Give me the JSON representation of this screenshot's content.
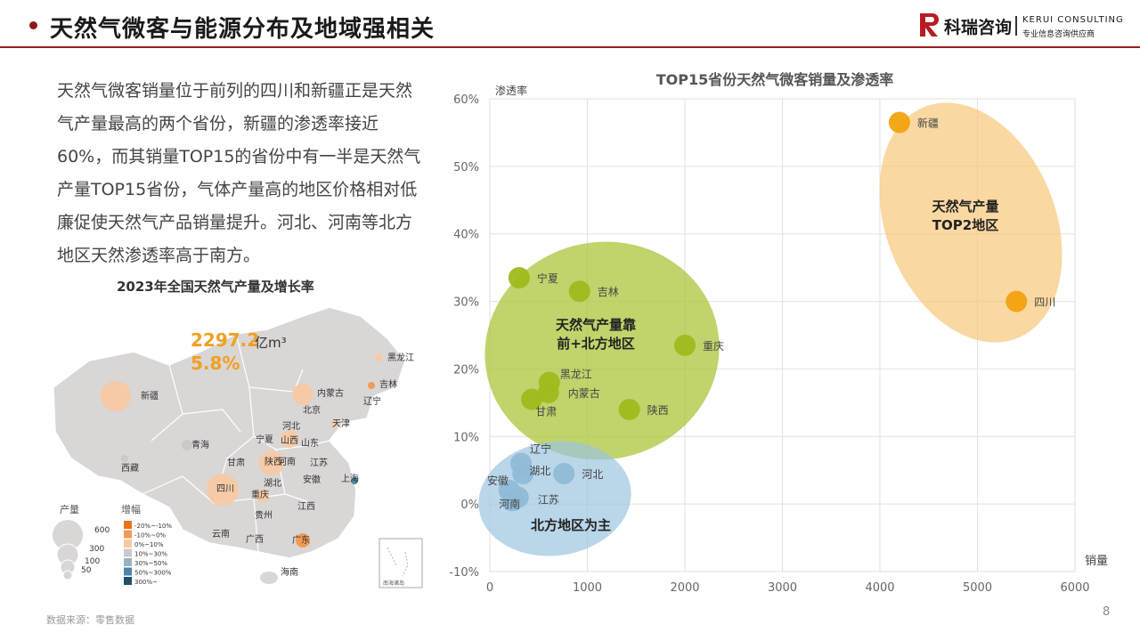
{
  "header": {
    "title": "天然气微客与能源分布及地域强相关",
    "logo_cn": "科瑞咨询",
    "logo_en": "KERUI CONSULTING",
    "logo_tag": "专业信息咨询供应商"
  },
  "paragraph": "天然气微客销量位于前列的四川和新疆正是天然气产量最高的两个省份，新疆的渗透率接近60%，而其销量TOP15的省份中有一半是天然气产量TOP15省份，气体产量高的地区价格相对低廉促使天然气产品销量提升。河北、河南等北方地区天然渗透率高于南方。",
  "map": {
    "title": "2023年全国天然气产量及增长率",
    "total_value": "2297.2",
    "total_unit": "亿m³",
    "growth": "5.8%",
    "provinces": [
      {
        "name": "黑龙江"
      },
      {
        "name": "吉林"
      },
      {
        "name": "内蒙古"
      },
      {
        "name": "辽宁"
      },
      {
        "name": "新疆"
      },
      {
        "name": "北京"
      },
      {
        "name": "天津"
      },
      {
        "name": "河北"
      },
      {
        "name": "青海"
      },
      {
        "name": "宁夏"
      },
      {
        "name": "山西"
      },
      {
        "name": "山东"
      },
      {
        "name": "甘肃"
      },
      {
        "name": "陕西"
      },
      {
        "name": "河南"
      },
      {
        "name": "江苏"
      },
      {
        "name": "西藏"
      },
      {
        "name": "湖北"
      },
      {
        "name": "安徽"
      },
      {
        "name": "上海"
      },
      {
        "name": "四川"
      },
      {
        "name": "重庆"
      },
      {
        "name": "贵州"
      },
      {
        "name": "江西"
      },
      {
        "name": "云南"
      },
      {
        "name": "广西"
      },
      {
        "name": "广东"
      },
      {
        "name": "海南"
      }
    ],
    "legend_size_title": "产量",
    "legend_sizes": [
      "600",
      "300",
      "100",
      "50"
    ],
    "legend_growth_title": "增幅",
    "legend_growth": [
      {
        "label": "-20%~-10%",
        "color": "#e8731a"
      },
      {
        "label": "-10%~0%",
        "color": "#f39a52"
      },
      {
        "label": "0%~10%",
        "color": "#f8c9a1"
      },
      {
        "label": "10%~30%",
        "color": "#c9c9c9"
      },
      {
        "label": "30%~50%",
        "color": "#9ab3c4"
      },
      {
        "label": "50%~300%",
        "color": "#4b86a8"
      },
      {
        "label": "300%~",
        "color": "#1f4f6e"
      }
    ],
    "inset_label": "南海诸岛"
  },
  "source": "数据来源：零售数据",
  "page_number": "8",
  "chart_data": {
    "type": "scatter",
    "title": "TOP15省份天然气微客销量及渗透率",
    "xlabel": "销量",
    "ylabel": "渗透率",
    "xlim": [
      0,
      6000
    ],
    "ylim": [
      -10,
      60
    ],
    "x_ticks": [
      "0",
      "1000",
      "2000",
      "3000",
      "4000",
      "5000",
      "6000"
    ],
    "y_ticks": [
      "-10%",
      "0%",
      "10%",
      "20%",
      "30%",
      "40%",
      "50%",
      "60%"
    ],
    "grid": true,
    "series": [
      {
        "color": "#f2a20f",
        "points": [
          {
            "name": "新疆",
            "x": 4200,
            "y": 56.5
          },
          {
            "name": "四川",
            "x": 5400,
            "y": 30
          }
        ]
      },
      {
        "color": "#9fba1c",
        "points": [
          {
            "name": "宁夏",
            "x": 300,
            "y": 33.5
          },
          {
            "name": "吉林",
            "x": 920,
            "y": 31.5
          },
          {
            "name": "重庆",
            "x": 2000,
            "y": 23.5
          },
          {
            "name": "黑龙江",
            "x": 610,
            "y": 18
          },
          {
            "name": "内蒙古",
            "x": 600,
            "y": 16.5
          },
          {
            "name": "甘肃",
            "x": 430,
            "y": 15.5
          },
          {
            "name": "陕西",
            "x": 1430,
            "y": 14
          }
        ]
      },
      {
        "color": "#8fbad6",
        "points": [
          {
            "name": "辽宁",
            "x": 320,
            "y": 6
          },
          {
            "name": "湖北",
            "x": 340,
            "y": 4.5
          },
          {
            "name": "河北",
            "x": 760,
            "y": 4.5
          },
          {
            "name": "安徽",
            "x": 200,
            "y": 2
          },
          {
            "name": "江苏",
            "x": 290,
            "y": 1
          },
          {
            "name": "河南",
            "x": 230,
            "y": 0.5
          }
        ]
      }
    ],
    "groups": [
      {
        "label_line1": "天然气产量",
        "label_line2": "TOP2地区",
        "color": "#f6c77a"
      },
      {
        "label_line1": "天然气产量靠",
        "label_line2": "前+北方地区",
        "color": "#a9c53a"
      },
      {
        "label_line1": "北方地区为主",
        "label_line2": "",
        "color": "#9cc4e0"
      }
    ]
  }
}
